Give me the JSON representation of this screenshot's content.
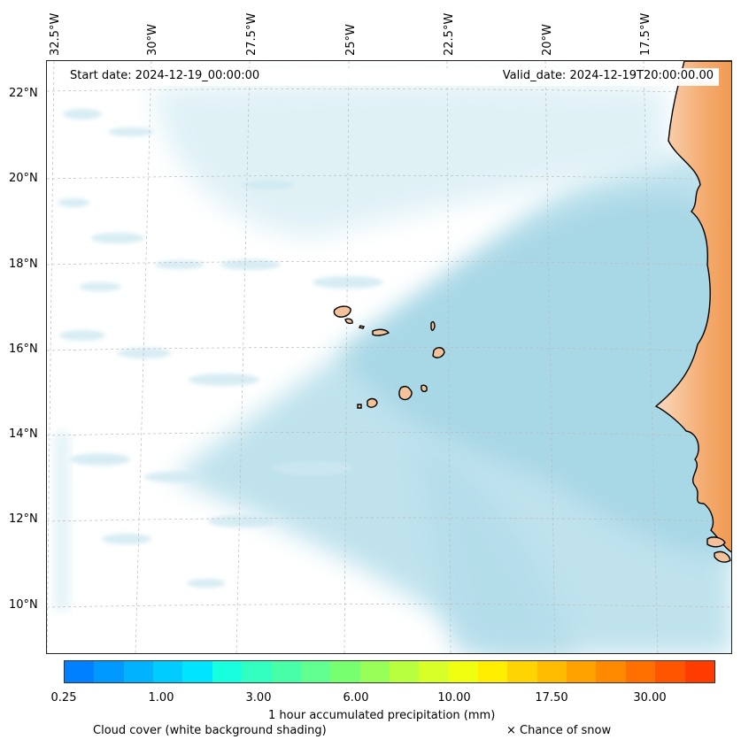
{
  "header": {
    "start_date": "Start date: 2024-12-19_00:00:00",
    "valid_date": "Valid_date: 2024-12-19T20:00:00.00"
  },
  "longitude_labels": [
    "32.5°W",
    "30°W",
    "27.5°W",
    "25°W",
    "22.5°W",
    "20°W",
    "17.5°W"
  ],
  "latitude_labels": [
    "22°N",
    "20°N",
    "18°N",
    "16°N",
    "14°N",
    "12°N",
    "10°N"
  ],
  "colorbar": {
    "colors": [
      "#0080ff",
      "#0099ff",
      "#00b2ff",
      "#00ccff",
      "#00e5ff",
      "#18ffe0",
      "#30ffc0",
      "#48ffa8",
      "#60ff90",
      "#78ff70",
      "#98ff58",
      "#b8ff40",
      "#d8ff28",
      "#f0ff10",
      "#ffee00",
      "#ffd400",
      "#ffbb00",
      "#ffa200",
      "#ff8a00",
      "#ff7000",
      "#ff5400",
      "#ff3c00"
    ],
    "tick_labels": [
      "0.25",
      "1.00",
      "3.00",
      "6.00",
      "10.00",
      "17.50",
      "30.00"
    ],
    "label": "1 hour accumulated precipitation (mm)"
  },
  "captions": {
    "cloud_cover": "Cloud cover (white background shading)",
    "snow": "× Chance of snow"
  },
  "colors": {
    "land_orange": "#f2a05e",
    "island_fill": "#f4c29a",
    "cloud_blue": "#a9d8e6",
    "gridline": "#bbbbbb"
  }
}
